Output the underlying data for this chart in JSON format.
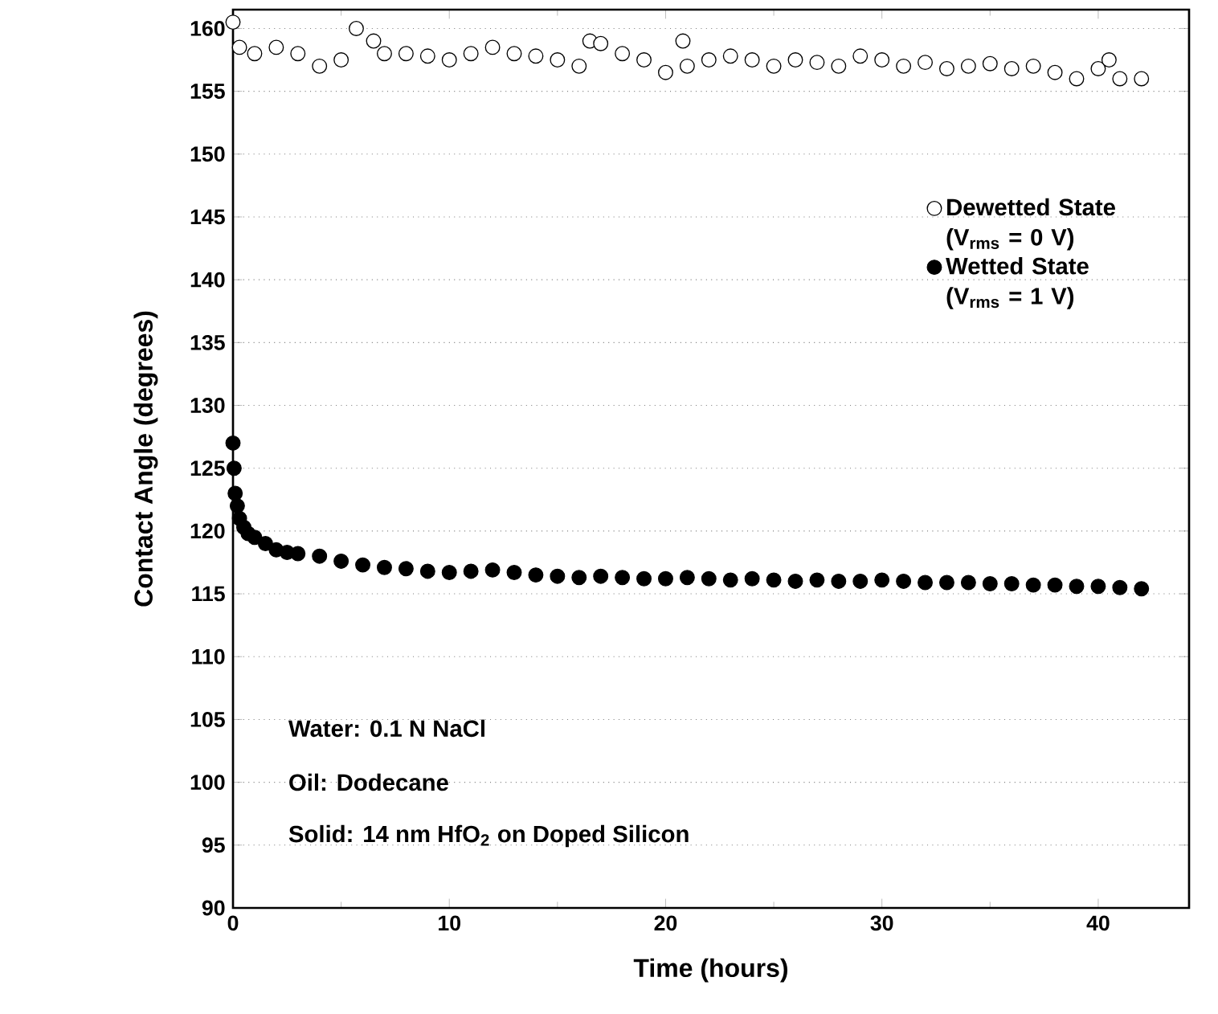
{
  "chart_data": {
    "type": "scatter",
    "xlabel": "Time (hours)",
    "ylabel": "Contact Angle (degrees)",
    "xlim": [
      0,
      44.2
    ],
    "ylim": [
      90,
      161.5
    ],
    "xticks": [
      0,
      10,
      20,
      30,
      40
    ],
    "yticks": [
      90,
      95,
      100,
      105,
      110,
      115,
      120,
      125,
      130,
      135,
      140,
      145,
      150,
      155,
      160
    ],
    "grid": "y",
    "legend": "right",
    "marker": "circle",
    "annotations": [
      "Water: 0.1 N NaCl",
      "Oil: Dodecane",
      "Solid: 14 nm HfO$_{2}$ on Doped Silicon"
    ],
    "series": [
      {
        "name": "Dewetted State (V$_{rms}$ = 0 V)",
        "color": "#000000",
        "x": [
          0,
          0.3,
          1,
          2,
          3,
          4,
          5,
          5.7,
          6.5,
          7,
          8,
          9,
          10,
          11,
          12,
          13,
          14,
          15,
          16,
          16.5,
          17,
          18,
          19,
          20,
          20.8,
          21,
          22,
          23,
          24,
          25,
          26,
          27,
          28,
          29,
          30,
          31,
          32,
          33,
          34,
          35,
          36,
          37,
          38,
          39,
          40,
          40.5,
          41,
          42
        ],
        "values": [
          160.5,
          158.5,
          158,
          158.5,
          158,
          157,
          157.5,
          160,
          159,
          158,
          158,
          157.8,
          157.5,
          158,
          158.5,
          158,
          157.8,
          157.5,
          157,
          159,
          158.8,
          158,
          157.5,
          156.5,
          159,
          157,
          157.5,
          157.8,
          157.5,
          157,
          157.5,
          157.3,
          157,
          157.8,
          157.5,
          157,
          157.3,
          156.8,
          157,
          157.2,
          156.8,
          157,
          156.5,
          156,
          156.8,
          157.5,
          156,
          156
        ]
      },
      {
        "name": "Wetted State (V$_{rms}$ = 1 V)",
        "color": "#000000",
        "x": [
          0,
          0.05,
          0.1,
          0.2,
          0.3,
          0.5,
          0.7,
          1,
          1.5,
          2,
          2.5,
          3,
          4,
          5,
          6,
          7,
          8,
          9,
          10,
          11,
          12,
          13,
          14,
          15,
          16,
          17,
          18,
          19,
          20,
          21,
          22,
          23,
          24,
          25,
          26,
          27,
          28,
          29,
          30,
          31,
          32,
          33,
          34,
          35,
          36,
          37,
          38,
          39,
          40,
          41,
          42
        ],
        "values": [
          127,
          125,
          123,
          122,
          121,
          120.3,
          119.8,
          119.5,
          119,
          118.5,
          118.3,
          118.2,
          118,
          117.6,
          117.3,
          117.1,
          117,
          116.8,
          116.7,
          116.8,
          116.9,
          116.7,
          116.5,
          116.4,
          116.3,
          116.4,
          116.3,
          116.2,
          116.2,
          116.3,
          116.2,
          116.1,
          116.2,
          116.1,
          116,
          116.1,
          116,
          116,
          116.1,
          116,
          115.9,
          115.9,
          115.9,
          115.8,
          115.8,
          115.7,
          115.7,
          115.6,
          115.6,
          115.5,
          115.4
        ]
      }
    ]
  }
}
